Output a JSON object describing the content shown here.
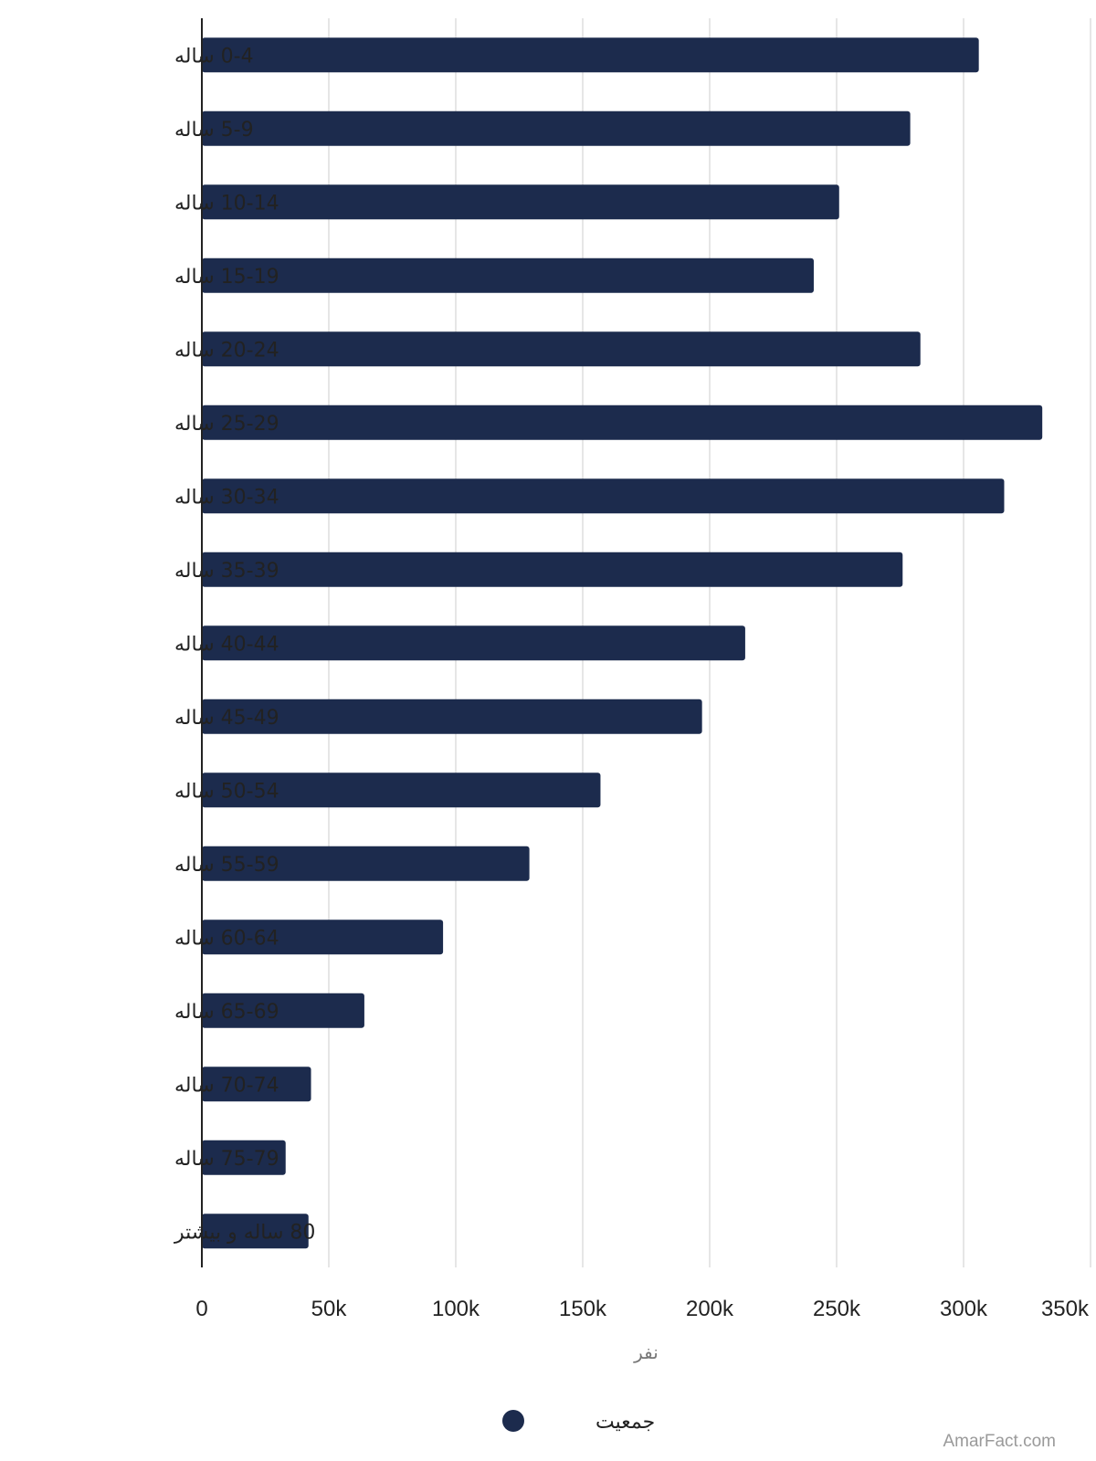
{
  "chart_data": {
    "type": "bar",
    "orientation": "horizontal",
    "categories": [
      "0-4 ساله",
      "5-9 ساله",
      "10-14 ساله",
      "15-19 ساله",
      "20-24 ساله",
      "25-29 ساله",
      "30-34 ساله",
      "35-39 ساله",
      "40-44 ساله",
      "45-49 ساله",
      "50-54 ساله",
      "55-59 ساله",
      "60-64 ساله",
      "65-69 ساله",
      "70-74 ساله",
      "75-79 ساله",
      "80 ساله و بیشتر"
    ],
    "series": [
      {
        "name": "جمعیت",
        "color": "#1c2b4d",
        "values": [
          306000,
          279000,
          251000,
          241000,
          283000,
          331000,
          316000,
          276000,
          214000,
          197000,
          157000,
          129000,
          95000,
          64000,
          43000,
          33000,
          42000
        ]
      }
    ],
    "xlabel": "نفر",
    "ylabel": "",
    "xlim": [
      0,
      350000
    ],
    "xticks": [
      {
        "value": 0,
        "label": "0"
      },
      {
        "value": 50000,
        "label": "50k"
      },
      {
        "value": 100000,
        "label": "100k"
      },
      {
        "value": 150000,
        "label": "150k"
      },
      {
        "value": 200000,
        "label": "200k"
      },
      {
        "value": 250000,
        "label": "250k"
      },
      {
        "value": 300000,
        "label": "300k"
      },
      {
        "value": 350000,
        "label": "350k"
      }
    ],
    "grid": true,
    "legend_position": "bottom-center"
  },
  "watermark": "AmarFact.com"
}
